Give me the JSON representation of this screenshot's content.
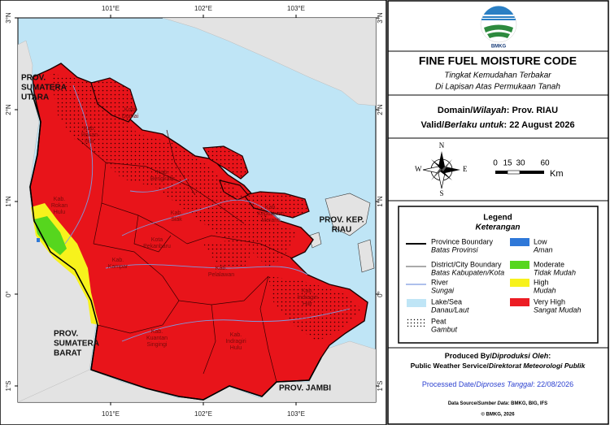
{
  "map": {
    "lon_labels": [
      "101°E",
      "102°E",
      "103°E"
    ],
    "lat_labels": [
      "3°N",
      "2°N",
      "1°N",
      "0°",
      "1°S"
    ],
    "regions": [
      {
        "lines": [
          "PROV.",
          "SUMATERA",
          "UTARA"
        ]
      },
      {
        "lines": [
          "PROV.",
          "SUMATERA",
          "BARAT"
        ]
      },
      {
        "lines": [
          "PROV. JAMBI"
        ]
      },
      {
        "lines": [
          "PROV. KEP.",
          "RIAU"
        ]
      }
    ],
    "districts": [
      {
        "lines": [
          "Kab.",
          "Rokan",
          "Hilir"
        ]
      },
      {
        "lines": [
          "Kota",
          "Dumai"
        ]
      },
      {
        "lines": [
          "Kab.",
          "Bengkalis"
        ]
      },
      {
        "lines": [
          "Kab.",
          "Rokan",
          "Hulu"
        ]
      },
      {
        "lines": [
          "Kab.",
          "Siak"
        ]
      },
      {
        "lines": [
          "Kota",
          "Pekanbaru"
        ]
      },
      {
        "lines": [
          "Kab.",
          "Kampar"
        ]
      },
      {
        "lines": [
          "Kab.",
          "Pelalawan"
        ]
      },
      {
        "lines": [
          "Kab.",
          "Kepulauan",
          "Meranti"
        ]
      },
      {
        "lines": [
          "Kab.",
          "Indragiri",
          "Hilir"
        ]
      },
      {
        "lines": [
          "Kab.",
          "Kuantan",
          "Singingi"
        ]
      },
      {
        "lines": [
          "Kab.",
          "Indragiri",
          "Hulu"
        ]
      }
    ]
  },
  "header": {
    "logo_text": "BMKG",
    "title": "FINE FUEL MOISTURE CODE",
    "subtitle": [
      "Tingkat Kemudahan Terbakar",
      "Di Lapisan Atas Permukaan Tanah"
    ]
  },
  "domain": {
    "label_en": "Domain/",
    "label_id": "Wilayah",
    "value": ": Prov. RIAU"
  },
  "valid": {
    "label_en": "Valid/",
    "label_id": "Berlaku untuk",
    "value": ": 22 August 2026"
  },
  "compass": {
    "n": "N",
    "s": "S",
    "e": "E",
    "w": "W"
  },
  "scale": {
    "ticks": [
      "0",
      "15",
      "30",
      "60"
    ],
    "unit": "Km"
  },
  "legend": {
    "title": "Legend",
    "subtitle": "Keterangan",
    "items": [
      {
        "label": "Province Boundary",
        "sublabel": "Batas Provinsi"
      },
      {
        "label": "District/City Boundary",
        "sublabel": "Batas Kabupaten/Kota"
      },
      {
        "label": "River",
        "sublabel": "Sungai"
      },
      {
        "label": "Lake/Sea",
        "sublabel": "Danau/Laut"
      },
      {
        "label": "Peat",
        "sublabel": "Gambut"
      }
    ],
    "classes": [
      {
        "label": "Low",
        "sublabel": "Aman",
        "color": "#2f78d8"
      },
      {
        "label": "Moderate",
        "sublabel": "Tidak Mudah",
        "color": "#56d61e"
      },
      {
        "label": "High",
        "sublabel": "Mudah",
        "color": "#f7f21c"
      },
      {
        "label": "Very High",
        "sublabel": "Sangat Mudah",
        "color": "#ec1c24"
      }
    ]
  },
  "footer": {
    "produced_label": "Produced By/",
    "produced_label_id": "Diproduksi Oleh",
    "produced_sep": ":",
    "producer_en": "Public Weather Service/",
    "producer_id": "Direktorat Meteorologi Publik",
    "processed_label": "Processed Date/",
    "processed_label_id": "Diproses Tanggal",
    "processed_value": ": 22/08/2026",
    "source_label": "Data Source/",
    "source_label_id": "Sumber Data",
    "source_value": ": BMKG, BIG, IFS",
    "copyright": "© BMKG, 2026"
  }
}
